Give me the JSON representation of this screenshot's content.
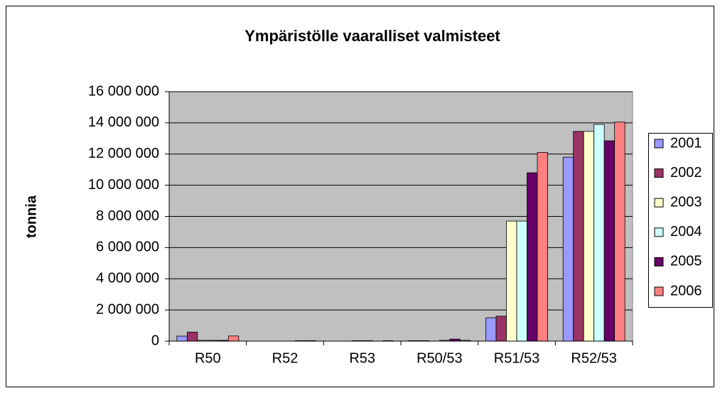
{
  "chart_data": {
    "type": "bar",
    "title": "Ympäristölle vaaralliset valmisteet",
    "y_label": "tonnia",
    "categories": [
      "R50",
      "R52",
      "R53",
      "R50/53",
      "R51/53",
      "R52/53"
    ],
    "series": [
      {
        "name": "2001",
        "color": "#9999FF",
        "values": [
          320000,
          0,
          0,
          30000,
          1500000,
          11800000
        ]
      },
      {
        "name": "2002",
        "color": "#993366",
        "values": [
          580000,
          0,
          0,
          30000,
          1600000,
          13450000
        ]
      },
      {
        "name": "2003",
        "color": "#FFFFCC",
        "values": [
          50000,
          0,
          30000,
          0,
          7700000,
          13450000
        ]
      },
      {
        "name": "2004",
        "color": "#CCFFFF",
        "values": [
          50000,
          0,
          30000,
          50000,
          7700000,
          13900000
        ]
      },
      {
        "name": "2005",
        "color": "#660066",
        "values": [
          50000,
          30000,
          0,
          130000,
          10800000,
          12850000
        ]
      },
      {
        "name": "2006",
        "color": "#FF8080",
        "values": [
          330000,
          30000,
          30000,
          50000,
          12100000,
          14050000
        ]
      }
    ],
    "ylim": [
      0,
      16000000
    ],
    "yticks": [
      0,
      {
        "value": 2000000,
        "label": "2 000 000"
      },
      {
        "value": 4000000,
        "label": "4 000 000"
      },
      {
        "value": 6000000,
        "label": "6 000 000"
      },
      {
        "value": 8000000,
        "label": "8 000 000"
      },
      {
        "value": 10000000,
        "label": "10 000 000"
      },
      {
        "value": 12000000,
        "label": "12 000 000"
      },
      {
        "value": 14000000,
        "label": "14 000 000"
      },
      {
        "value": 16000000,
        "label": "16 000 000"
      }
    ],
    "grid": true,
    "legend": "right",
    "plot_background": "#C0C0C0"
  }
}
